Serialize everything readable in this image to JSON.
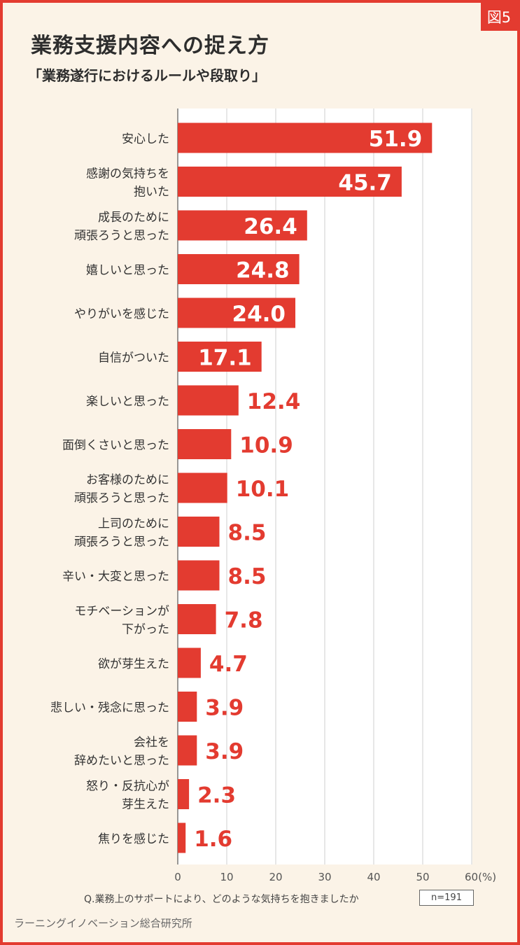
{
  "figure_label": "図5",
  "title": "業務支援内容への捉え方",
  "subtitle": "「業務遂行におけるルールや段取り」",
  "question": "Q.業務上のサポートにより、どのような気持ちを抱きましたか",
  "sample_size": "n=191",
  "source": "ラーニングイノベーション総合研究所",
  "colors": {
    "bar": "#e33b30",
    "background": "#fbf3e7",
    "border": "#e33b30",
    "plot_background": "#ffffff"
  },
  "chart_data": {
    "type": "bar",
    "orientation": "horizontal",
    "categories": [
      [
        "安心した"
      ],
      [
        "感謝の気持ちを",
        "抱いた"
      ],
      [
        "成長のために",
        "頑張ろうと思った"
      ],
      [
        "嬉しいと思った"
      ],
      [
        "やりがいを感じた"
      ],
      [
        "自信がついた"
      ],
      [
        "楽しいと思った"
      ],
      [
        "面倒くさいと思った"
      ],
      [
        "お客様のために",
        "頑張ろうと思った"
      ],
      [
        "上司のために",
        "頑張ろうと思った"
      ],
      [
        "辛い・大変と思った"
      ],
      [
        "モチベーションが",
        "下がった"
      ],
      [
        "欲が芽生えた"
      ],
      [
        "悲しい・残念に思った"
      ],
      [
        "会社を",
        "辞めたいと思った"
      ],
      [
        "怒り・反抗心が",
        "芽生えた"
      ],
      [
        "焦りを感じた"
      ]
    ],
    "values": [
      51.9,
      45.7,
      26.4,
      24.8,
      24.0,
      17.1,
      12.4,
      10.9,
      10.1,
      8.5,
      8.5,
      7.8,
      4.7,
      3.9,
      3.9,
      2.3,
      1.6
    ],
    "value_labels": [
      "51.9",
      "45.7",
      "26.4",
      "24.8",
      "24.0",
      "17.1",
      "12.4",
      "10.9",
      "10.1",
      "8.5",
      "8.5",
      "7.8",
      "4.7",
      "3.9",
      "3.9",
      "2.3",
      "1.6"
    ],
    "x_ticks": [
      "0",
      "10",
      "20",
      "30",
      "40",
      "50",
      "60(%)"
    ],
    "xlim": [
      0,
      60
    ],
    "grid": true
  }
}
